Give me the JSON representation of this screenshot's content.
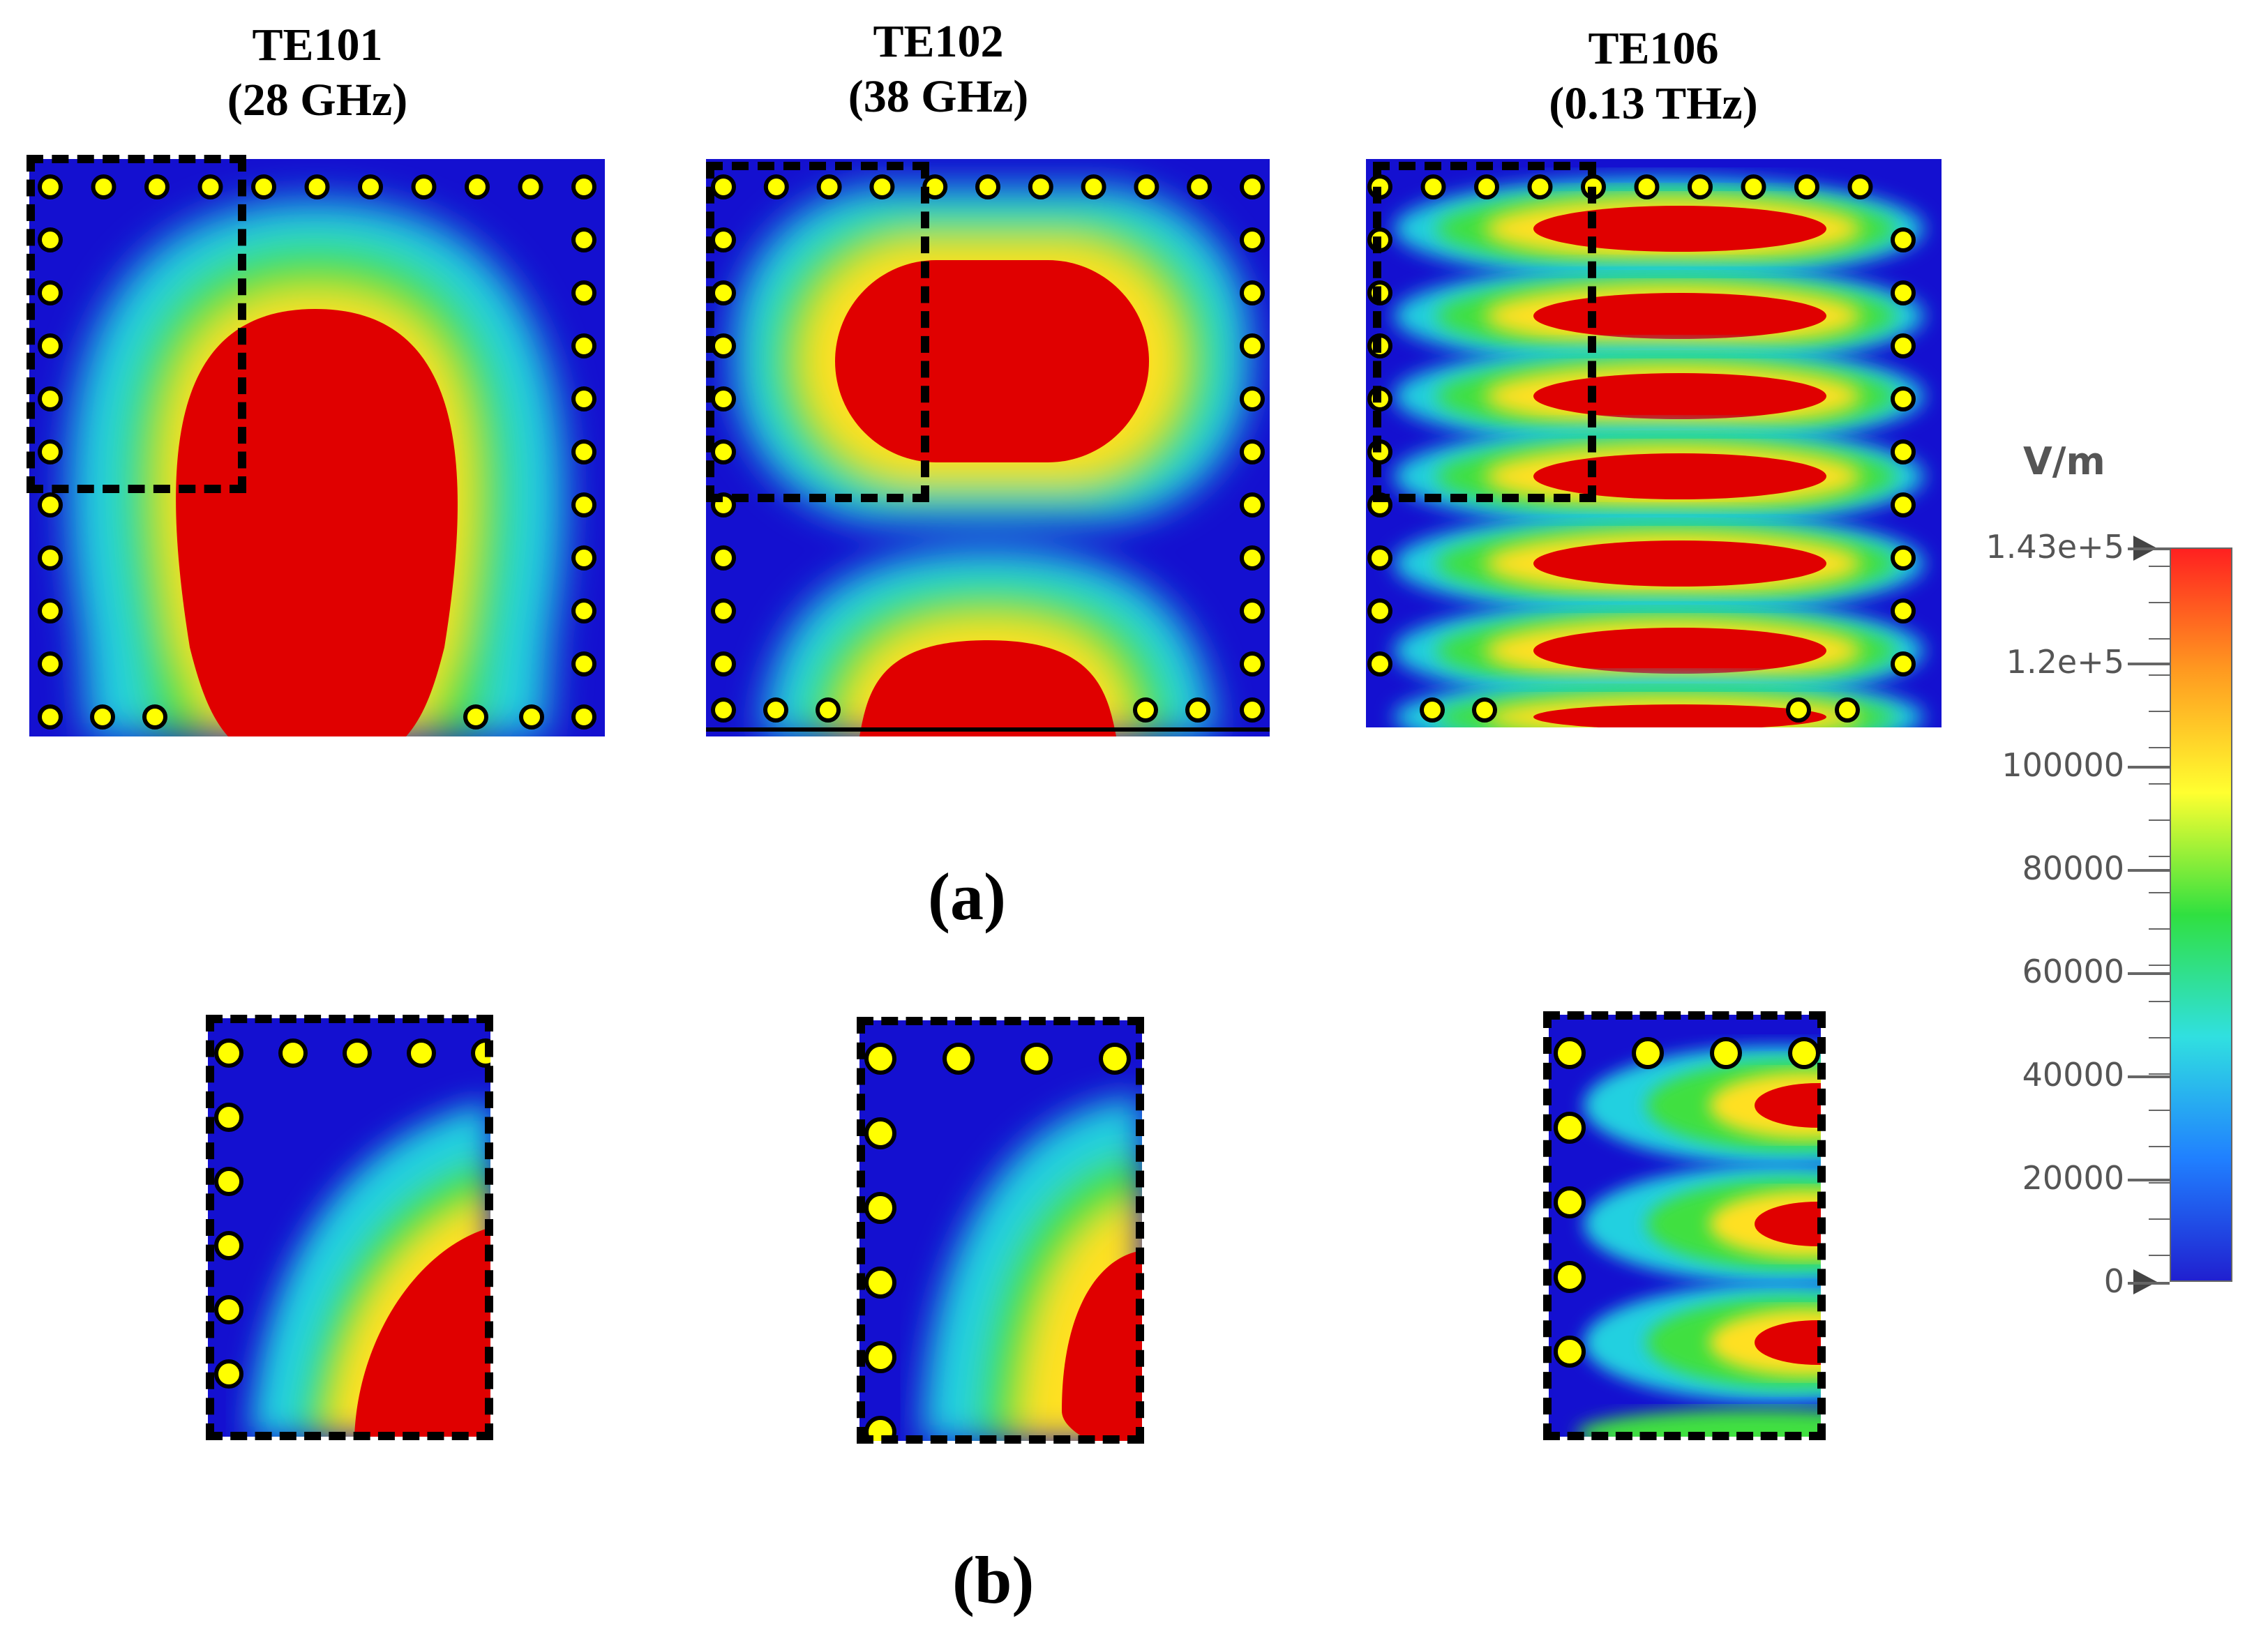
{
  "modes": [
    {
      "name": "TE101",
      "freq": "(28 GHz)"
    },
    {
      "name": "TE102",
      "freq": "(38 GHz)"
    },
    {
      "name": "TE106",
      "freq": "(0.13 THz)"
    }
  ],
  "labels": {
    "a": "(a)",
    "b": "(b)"
  },
  "colorbar": {
    "unit": "V/m",
    "ticks": [
      "1.43e+5",
      "1.2e+5",
      "100000",
      "80000",
      "60000",
      "40000",
      "20000",
      "0"
    ],
    "gradient": [
      "#ff2020",
      "#ff9a20",
      "#ffff30",
      "#30e040",
      "#30e0e0",
      "#2080ff",
      "#2020d0"
    ]
  },
  "colors": {
    "field_low": "#1410d0",
    "field_high": "#e00000",
    "via": "#ffff00"
  }
}
